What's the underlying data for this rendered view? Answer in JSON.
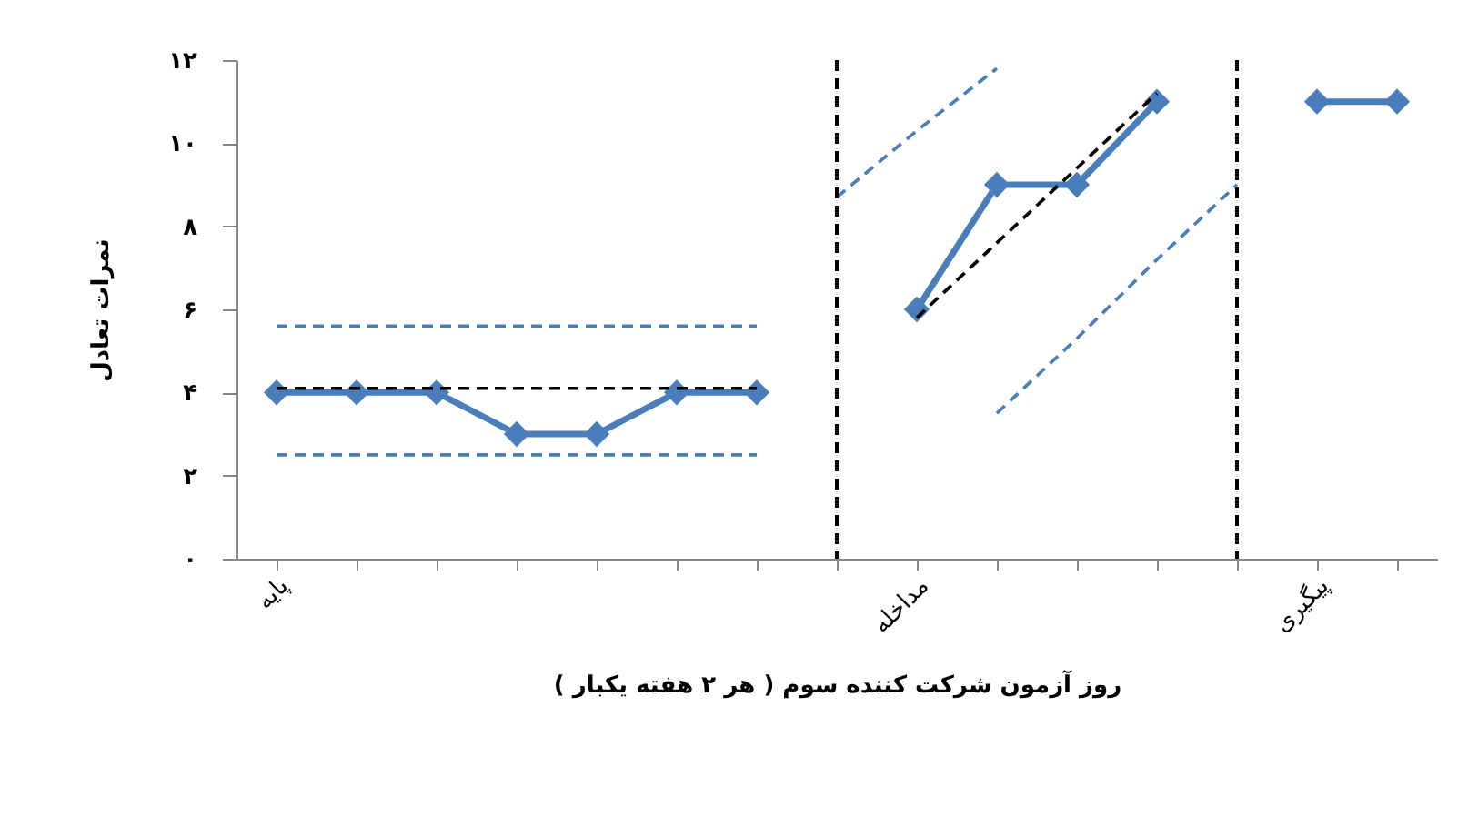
{
  "chart_data": {
    "type": "line",
    "categories": [
      "پایه",
      null,
      null,
      null,
      null,
      null,
      null,
      null,
      "مداخله",
      null,
      null,
      null,
      null,
      "پیگیری",
      null
    ],
    "xlabel": "روز آزمون شرکت کننده سوم ( هر ۲ هفته یکبار )",
    "ylabel": "نمرات تعادل",
    "ylim": [
      0,
      12
    ],
    "yticks": [
      {
        "value": 0,
        "label": "۰"
      },
      {
        "value": 2,
        "label": "۲"
      },
      {
        "value": 4,
        "label": "۴"
      },
      {
        "value": 6,
        "label": "۶"
      },
      {
        "value": 8,
        "label": "۸"
      },
      {
        "value": 10,
        "label": "۱۰"
      },
      {
        "value": 12,
        "label": "۱۲"
      }
    ],
    "series": [
      {
        "color": "#4a7ebb",
        "values": [
          4,
          4,
          4,
          3,
          3,
          4,
          4,
          null,
          6,
          9,
          9,
          11,
          null,
          11,
          11
        ]
      },
      {
        "type": "line",
        "color": "#000000",
        "line_style": "dashed",
        "marker": "none",
        "values": [
          4.1,
          4.1,
          4.1,
          4.1,
          4.1,
          4.1,
          4.1,
          null,
          5.8,
          7.6,
          9.4,
          11.2,
          null,
          null,
          null
        ]
      },
      {
        "type": "line",
        "color": "#4a7ebb",
        "line_style": "dashed",
        "marker": "none",
        "values": [
          5.6,
          5.6,
          5.6,
          5.6,
          5.6,
          5.6,
          5.6,
          null,
          null,
          null,
          null,
          null,
          null,
          null,
          null
        ]
      },
      {
        "type": "line",
        "color": "#4a7ebb",
        "line_style": "dashed",
        "marker": "none",
        "values": [
          null,
          null,
          null,
          null,
          null,
          null,
          null,
          8.7,
          10.3,
          11.8,
          null,
          null,
          null,
          null,
          null
        ]
      },
      {
        "type": "line",
        "color": "#4a7ebb",
        "line_style": "dashed",
        "marker": "none",
        "values": [
          2.5,
          2.5,
          2.5,
          2.5,
          2.5,
          2.5,
          2.5,
          null,
          null,
          3.5,
          5.3,
          7.2,
          9.0,
          null,
          null
        ]
      }
    ],
    "marker": "diamond",
    "line_style": "solid"
  }
}
